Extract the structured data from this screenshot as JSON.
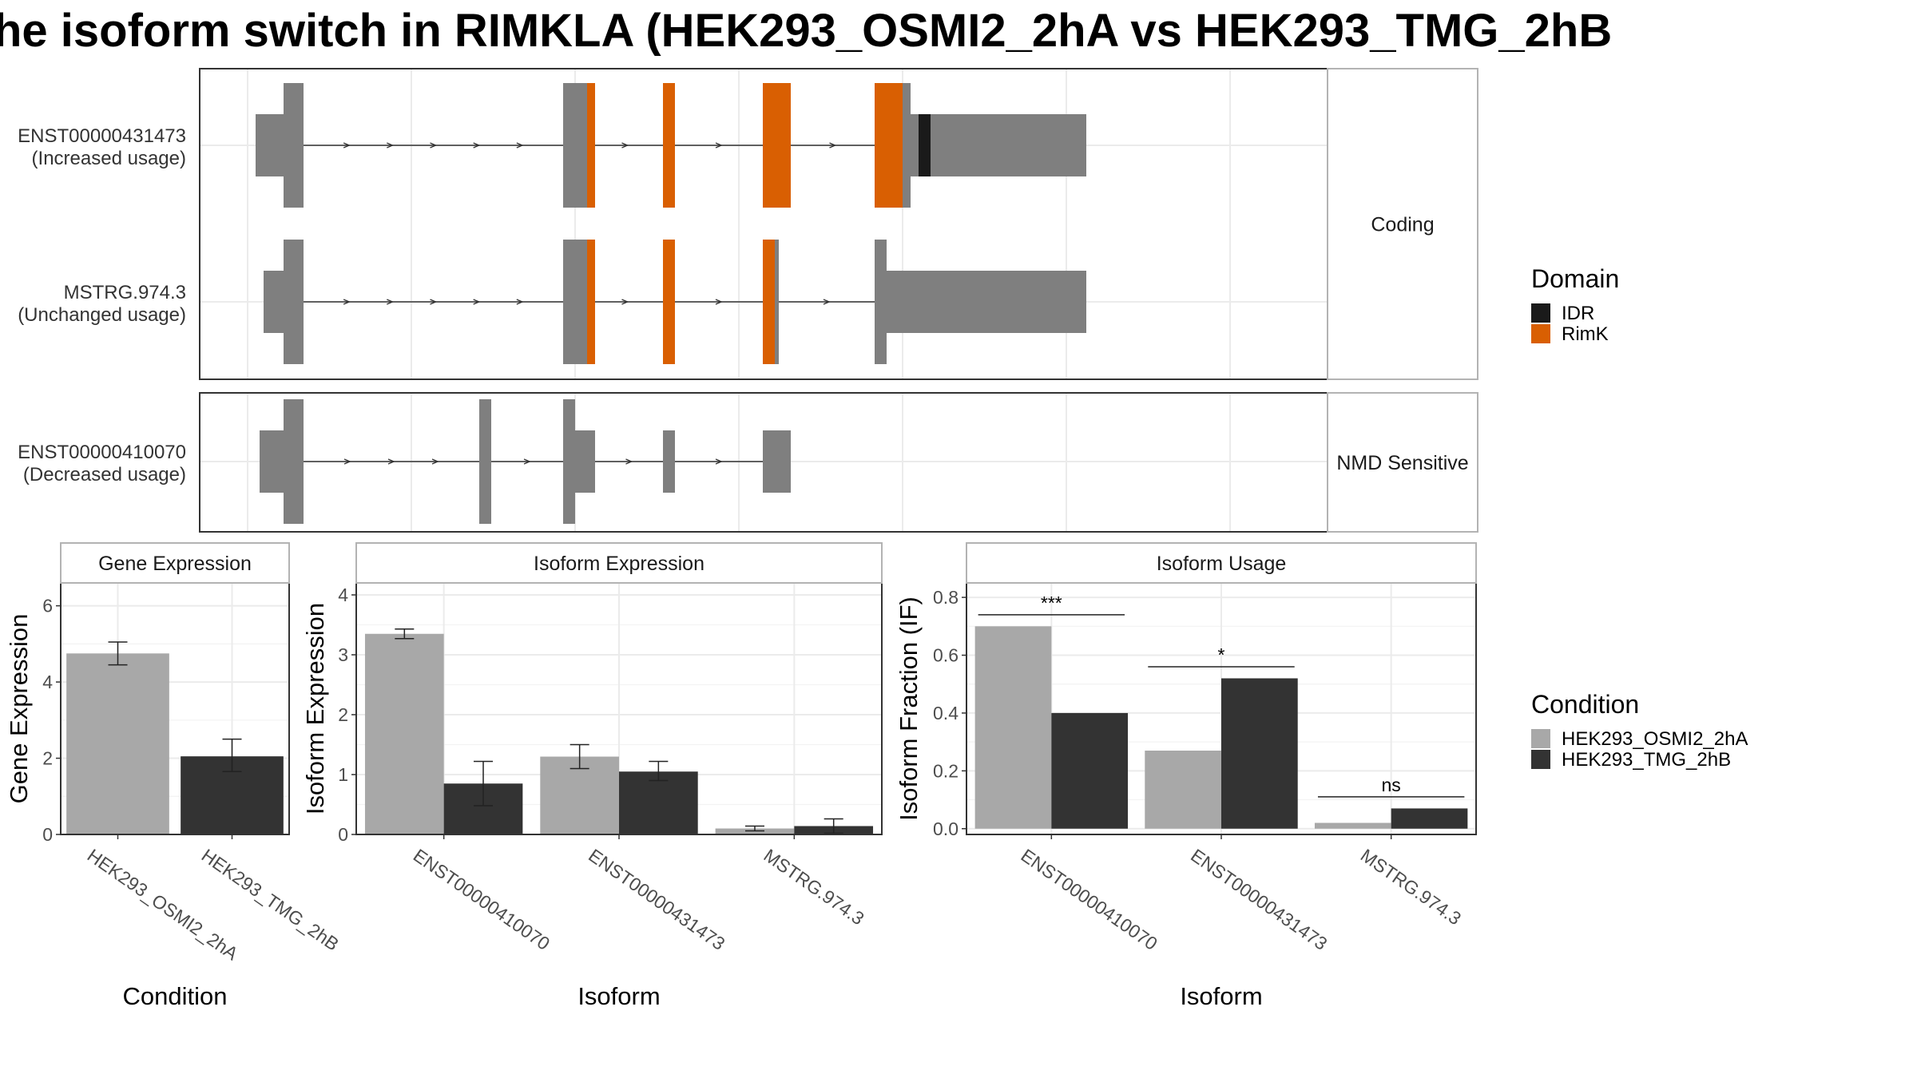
{
  "title": "he isoform switch in RIMKLA (HEK293_OSMI2_2hA vs HEK293_TMG_2hB",
  "colors": {
    "exon": "#7f7f7f",
    "IDR": "#1a1a1a",
    "RimK": "#d95f02",
    "cond_A": "#a8a8a8",
    "cond_B": "#333333",
    "grid": "#ebebeb",
    "panel_border": "#333333",
    "strip_border": "#b3b3b3"
  },
  "structure": {
    "facets": [
      {
        "label": "Coding",
        "transcripts": [
          "ENST00000431473",
          "MSTRG.974.3"
        ]
      },
      {
        "label": "NMD Sensitive",
        "transcripts": [
          "ENST00000410070"
        ]
      }
    ],
    "transcripts": [
      {
        "id": "ENST00000431473",
        "usage": "(Increased usage)",
        "exons": [
          [
            2,
            9,
            "utr"
          ],
          [
            9,
            14,
            "cds"
          ],
          [
            79,
            85,
            "cds"
          ],
          [
            104,
            107,
            "cds"
          ],
          [
            129,
            136,
            "cds"
          ],
          [
            157,
            166,
            "cds"
          ],
          [
            166,
            210,
            "utr"
          ]
        ],
        "domains": [
          [
            85,
            87,
            "RimK"
          ],
          [
            104,
            107,
            "RimK"
          ],
          [
            129,
            136,
            "RimK"
          ],
          [
            157,
            164,
            "RimK"
          ],
          [
            168,
            171,
            "IDR"
          ]
        ]
      },
      {
        "id": "MSTRG.974.3",
        "usage": "(Unchanged usage)",
        "exons": [
          [
            4,
            9,
            "utr"
          ],
          [
            9,
            14,
            "cds"
          ],
          [
            79,
            85,
            "cds"
          ],
          [
            104,
            107,
            "cds"
          ],
          [
            129,
            133,
            "cds"
          ],
          [
            157,
            160,
            "cds"
          ],
          [
            160,
            210,
            "utr"
          ]
        ],
        "domains": [
          [
            85,
            87,
            "RimK"
          ],
          [
            104,
            107,
            "RimK"
          ],
          [
            129,
            132,
            "RimK"
          ]
        ]
      },
      {
        "id": "ENST00000410070",
        "usage": "(Decreased usage)",
        "exons": [
          [
            3,
            9,
            "utr"
          ],
          [
            9,
            14,
            "cds"
          ],
          [
            58,
            61,
            "cds"
          ],
          [
            79,
            82,
            "cds"
          ],
          [
            82,
            87,
            "utr"
          ],
          [
            104,
            107,
            "utr"
          ],
          [
            129,
            136,
            "utr"
          ]
        ],
        "domains": []
      }
    ]
  },
  "legend_domain": {
    "title": "Domain",
    "items": [
      {
        "label": "IDR",
        "color": "#1a1a1a"
      },
      {
        "label": "RimK",
        "color": "#d95f02"
      }
    ]
  },
  "legend_condition": {
    "title": "Condition",
    "items": [
      {
        "label": "HEK293_OSMI2_2hA",
        "color": "#a8a8a8"
      },
      {
        "label": "HEK293_TMG_2hB",
        "color": "#333333"
      }
    ]
  },
  "chart_data": [
    {
      "type": "bar",
      "title": "Gene Expression",
      "xlabel": "Condition",
      "ylabel": "Gene Expression",
      "categories": [
        "HEK293_OSMI2_2hA",
        "HEK293_TMG_2hB"
      ],
      "values": [
        4.75,
        2.05
      ],
      "error": [
        [
          4.45,
          5.05
        ],
        [
          1.65,
          2.5
        ]
      ],
      "ylim": [
        0,
        6.6
      ],
      "yticks": [
        0,
        2,
        4,
        6
      ],
      "tick_labels": [
        "0",
        "2",
        "4",
        "6"
      ],
      "grid": true
    },
    {
      "type": "bar",
      "title": "Isoform Expression",
      "xlabel": "Isoform",
      "ylabel": "Isoform Expression",
      "categories": [
        "ENST00000410070",
        "ENST00000431473",
        "MSTRG.974.3"
      ],
      "series": [
        {
          "name": "HEK293_OSMI2_2hA",
          "values": [
            3.35,
            1.3,
            0.1
          ],
          "error": [
            [
              3.27,
              3.43
            ],
            [
              1.1,
              1.5
            ],
            [
              0.06,
              0.14
            ]
          ]
        },
        {
          "name": "HEK293_TMG_2hB",
          "values": [
            0.85,
            1.05,
            0.14
          ],
          "error": [
            [
              0.48,
              1.22
            ],
            [
              0.9,
              1.22
            ],
            [
              0.02,
              0.26
            ]
          ]
        }
      ],
      "ylim": [
        0,
        4.2
      ],
      "yticks": [
        0,
        1,
        2,
        3,
        4
      ],
      "tick_labels": [
        "0",
        "1",
        "2",
        "3",
        "4"
      ],
      "grid": true
    },
    {
      "type": "bar",
      "title": "Isoform Usage",
      "xlabel": "Isoform",
      "ylabel": "Isoform Fraction (IF)",
      "categories": [
        "ENST00000410070",
        "ENST00000431473",
        "MSTRG.974.3"
      ],
      "series": [
        {
          "name": "HEK293_OSMI2_2hA",
          "values": [
            0.7,
            0.27,
            0.02
          ]
        },
        {
          "name": "HEK293_TMG_2hB",
          "values": [
            0.4,
            0.52,
            0.07
          ]
        }
      ],
      "annotations": [
        {
          "category": "ENST00000410070",
          "label": "***",
          "y": 0.74
        },
        {
          "category": "ENST00000431473",
          "label": "*",
          "y": 0.56
        },
        {
          "category": "MSTRG.974.3",
          "label": "ns",
          "y": 0.11
        }
      ],
      "ylim": [
        -0.02,
        0.85
      ],
      "yticks": [
        0,
        0.2,
        0.4,
        0.6,
        0.8
      ],
      "tick_labels": [
        "0.0",
        "0.2",
        "0.4",
        "0.6",
        "0.8"
      ],
      "grid": true
    }
  ]
}
